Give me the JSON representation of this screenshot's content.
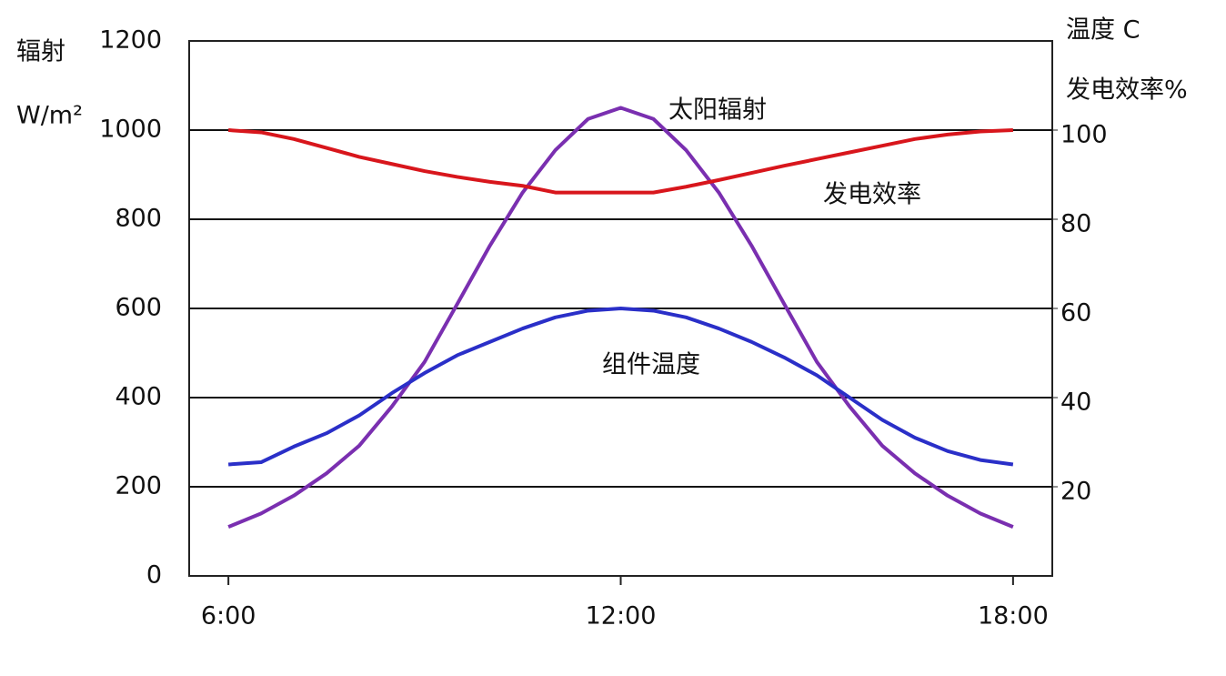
{
  "chart_data": {
    "type": "line",
    "y_label": "辐射",
    "y_unit": "W/m²",
    "y2_label": "温度 C",
    "y2_unit": "发电效率%",
    "annotations": [
      "太阳辐射",
      "发电效率",
      "组件温度"
    ],
    "xlim": [
      5.4,
      18.6
    ],
    "xticks": [
      {
        "value": 6,
        "label": "6:00"
      },
      {
        "value": 12,
        "label": "12:00"
      },
      {
        "value": 18,
        "label": "18:00"
      }
    ],
    "ylim": [
      0,
      1200
    ],
    "yticks": [
      0,
      200,
      400,
      600,
      800,
      1000,
      1200
    ],
    "y2lim": [
      0,
      120
    ],
    "y2ticks": [
      20,
      40,
      60,
      80,
      100
    ],
    "grid": true,
    "x": [
      6,
      6.5,
      7,
      7.5,
      8,
      8.5,
      9,
      9.5,
      10,
      10.5,
      11,
      11.5,
      12,
      12.5,
      13,
      13.5,
      14,
      14.5,
      15,
      15.5,
      16,
      16.5,
      17,
      17.5,
      18
    ],
    "series": [
      {
        "name": "太阳辐射",
        "color": "#7a2fb0",
        "values": [
          110,
          140,
          180,
          230,
          292,
          380,
          480,
          610,
          741,
          860,
          955,
          1025,
          1050,
          1025,
          955,
          860,
          741,
          610,
          480,
          380,
          292,
          230,
          180,
          140,
          110
        ]
      },
      {
        "name": "组件温度",
        "color": "#2a2fc8",
        "axis": "y2",
        "values": [
          25,
          25.5,
          29,
          32,
          36,
          41,
          45.5,
          49.5,
          52.5,
          55.5,
          58,
          59.5,
          60,
          59.5,
          58,
          55.5,
          52.5,
          49,
          45,
          40,
          35,
          31,
          28,
          26,
          25
        ]
      },
      {
        "name": "发电效率",
        "color": "#d8161c",
        "axis": "y2",
        "values": [
          100,
          99.5,
          98,
          96,
          94,
          92.4,
          90.8,
          89.5,
          88.4,
          87.5,
          86,
          86,
          86,
          86,
          87.3,
          88.8,
          90.4,
          92,
          93.5,
          95,
          96.5,
          98,
          99,
          99.7,
          100
        ]
      }
    ]
  }
}
